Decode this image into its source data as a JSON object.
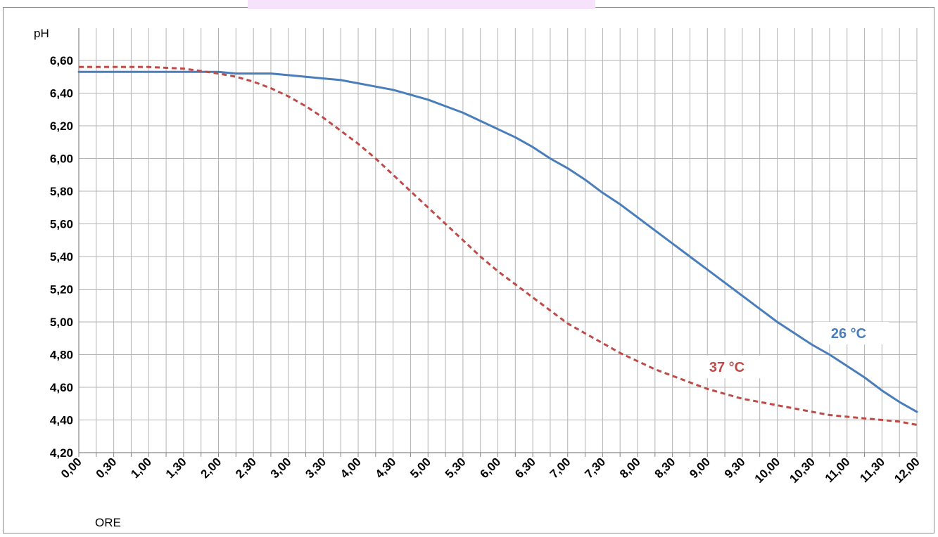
{
  "colors": {
    "series_26": "#4a7ebb",
    "series_37": "#be4b48",
    "grid": "#b3b3b3",
    "axis": "#868686",
    "label_dark": "#000000"
  },
  "chart_data": {
    "type": "line",
    "title": "",
    "xlabel": "ORE",
    "ylabel": "pH",
    "ylim": [
      4.2,
      6.6
    ],
    "y_ticks": [
      "4,20",
      "4,40",
      "4,60",
      "4,80",
      "5,00",
      "5,20",
      "5,40",
      "5,60",
      "5,80",
      "6,00",
      "6,20",
      "6,40",
      "6,60"
    ],
    "y_tick_values": [
      4.2,
      4.4,
      4.6,
      4.8,
      5.0,
      5.2,
      5.4,
      5.6,
      5.8,
      6.0,
      6.2,
      6.4,
      6.6
    ],
    "x_ticks": [
      "0,00",
      "0,30",
      "1,00",
      "1,30",
      "2,00",
      "2,30",
      "3,00",
      "3,30",
      "4,00",
      "4,30",
      "5,00",
      "5,30",
      "6,00",
      "6,30",
      "7,00",
      "7,30",
      "8,00",
      "8,30",
      "9,00",
      "9,30",
      "10,00",
      "10,30",
      "11,00",
      "11,30",
      "12,00"
    ],
    "x_tick_hours": [
      0,
      0.5,
      1,
      1.5,
      2,
      2.5,
      3,
      3.5,
      4,
      4.5,
      5,
      5.5,
      6,
      6.5,
      7,
      7.5,
      8,
      8.5,
      9,
      9.5,
      10,
      10.5,
      11,
      11.5,
      12
    ],
    "grid": true,
    "series": [
      {
        "name": "26 °C",
        "style": "solid",
        "x": [
          0,
          0.5,
          1,
          1.5,
          2,
          2.25,
          2.5,
          2.75,
          3,
          3.25,
          3.5,
          3.75,
          4,
          4.25,
          4.5,
          4.75,
          5,
          5.25,
          5.5,
          5.75,
          6,
          6.25,
          6.5,
          6.75,
          7,
          7.25,
          7.5,
          7.75,
          8,
          8.25,
          8.5,
          8.75,
          9,
          9.25,
          9.5,
          9.75,
          10,
          10.25,
          10.5,
          10.75,
          11,
          11.25,
          11.5,
          11.75,
          12
        ],
        "y": [
          6.53,
          6.53,
          6.53,
          6.53,
          6.53,
          6.52,
          6.52,
          6.52,
          6.51,
          6.5,
          6.49,
          6.48,
          6.46,
          6.44,
          6.42,
          6.39,
          6.36,
          6.32,
          6.28,
          6.23,
          6.18,
          6.13,
          6.07,
          6.0,
          5.94,
          5.87,
          5.79,
          5.72,
          5.64,
          5.56,
          5.48,
          5.4,
          5.32,
          5.24,
          5.16,
          5.08,
          5.0,
          4.93,
          4.86,
          4.8,
          4.73,
          4.66,
          4.58,
          4.51,
          4.45
        ]
      },
      {
        "name": "37 °C",
        "style": "dashed",
        "x": [
          0,
          0.5,
          1,
          1.5,
          2,
          2.25,
          2.5,
          2.75,
          3,
          3.25,
          3.5,
          3.75,
          4,
          4.25,
          4.5,
          4.75,
          5,
          5.25,
          5.5,
          5.75,
          6,
          6.25,
          6.5,
          6.75,
          7,
          7.25,
          7.5,
          7.75,
          8,
          8.25,
          8.5,
          8.75,
          9,
          9.25,
          9.5,
          9.75,
          10,
          10.25,
          10.5,
          10.75,
          11,
          11.25,
          11.5,
          11.75,
          12
        ],
        "y": [
          6.56,
          6.56,
          6.56,
          6.55,
          6.52,
          6.5,
          6.47,
          6.43,
          6.38,
          6.32,
          6.25,
          6.17,
          6.09,
          6.0,
          5.9,
          5.8,
          5.7,
          5.6,
          5.5,
          5.4,
          5.31,
          5.23,
          5.15,
          5.07,
          4.99,
          4.93,
          4.87,
          4.81,
          4.76,
          4.71,
          4.67,
          4.63,
          4.59,
          4.56,
          4.53,
          4.51,
          4.49,
          4.47,
          4.45,
          4.43,
          4.42,
          4.41,
          4.4,
          4.39,
          4.37
        ]
      }
    ],
    "annotations": [
      {
        "text": "26 °C",
        "series": 0
      },
      {
        "text": "37 °C",
        "series": 1
      }
    ]
  }
}
